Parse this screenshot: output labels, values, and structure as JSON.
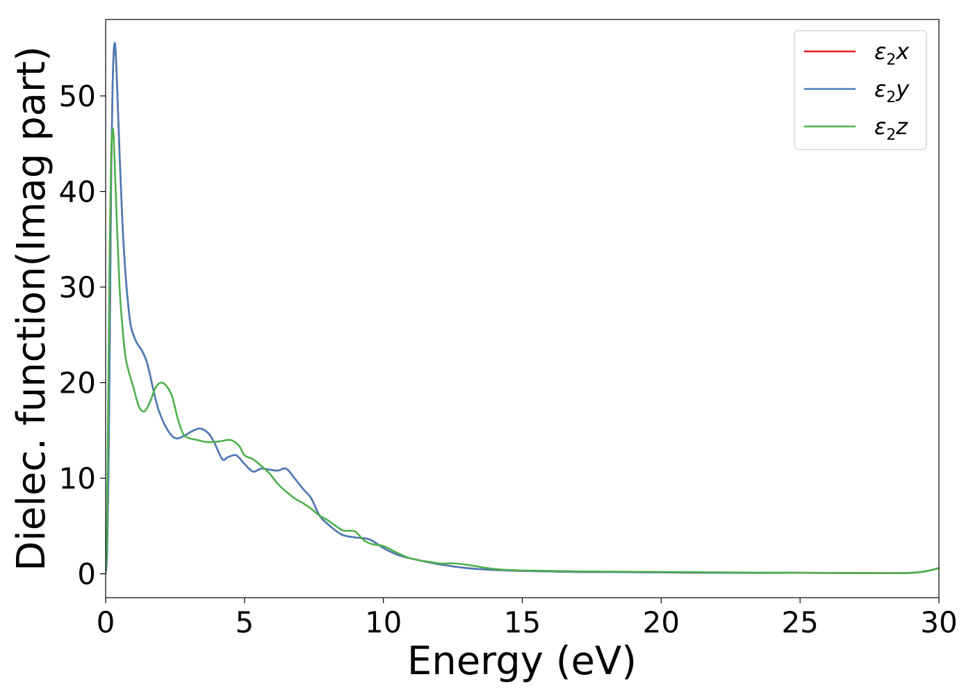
{
  "chart_data": {
    "type": "line",
    "xlabel": "Energy (eV)",
    "ylabel": "Dielec. function(Imag part)",
    "xlim": [
      0,
      30
    ],
    "ylim": [
      -2.5,
      58
    ],
    "xticks": [
      0,
      5,
      10,
      15,
      20,
      25,
      30
    ],
    "yticks": [
      0,
      10,
      20,
      30,
      40,
      50
    ],
    "legend_position": "top-right",
    "series": [
      {
        "name": "ε2x",
        "label_base": "ε",
        "label_sub": "2",
        "label_var": "x",
        "color": "#e41a1c",
        "x": [
          0,
          0.05,
          0.1,
          0.15,
          0.2,
          0.25,
          0.3,
          0.35,
          0.4,
          0.5,
          0.6,
          0.7,
          0.8,
          0.9,
          1.0,
          1.1,
          1.2,
          1.3,
          1.5,
          1.7,
          1.9,
          2.2,
          2.5,
          2.8,
          3.1,
          3.4,
          3.7,
          3.9,
          4.2,
          4.4,
          4.7,
          5.0,
          5.3,
          5.6,
          5.9,
          6.2,
          6.5,
          6.8,
          7.1,
          7.4,
          7.7,
          8.0,
          8.5,
          9.0,
          9.5,
          10.0,
          10.5,
          11.0,
          12.0,
          13.0,
          14.0,
          15.0,
          17.0,
          20.0,
          22.0,
          25.0,
          27.0,
          28.5,
          29.0,
          29.5,
          30.0
        ],
        "values": [
          0,
          2,
          10,
          25,
          42,
          51,
          55,
          54.8,
          52,
          44,
          37,
          32,
          28.5,
          26,
          25,
          24.3,
          23.8,
          23.4,
          22,
          19.5,
          17.2,
          15.2,
          14.2,
          14.4,
          14.9,
          15.2,
          14.7,
          13.8,
          12,
          12.2,
          12.4,
          11.5,
          10.7,
          11,
          10.9,
          10.8,
          11,
          10,
          8.9,
          7.9,
          6.1,
          5.2,
          4.1,
          3.8,
          3.6,
          2.7,
          2.0,
          1.6,
          1.0,
          0.6,
          0.4,
          0.3,
          0.2,
          0.15,
          0.1,
          0.1,
          0.08,
          0.07,
          0.1,
          0.25,
          0.6
        ]
      },
      {
        "name": "ε2y",
        "label_base": "ε",
        "label_sub": "2",
        "label_var": "y",
        "color": "#4a7db8",
        "x": [
          0,
          0.05,
          0.1,
          0.15,
          0.2,
          0.25,
          0.3,
          0.35,
          0.4,
          0.5,
          0.6,
          0.7,
          0.8,
          0.9,
          1.0,
          1.1,
          1.2,
          1.3,
          1.5,
          1.7,
          1.9,
          2.2,
          2.5,
          2.8,
          3.1,
          3.4,
          3.7,
          3.9,
          4.2,
          4.4,
          4.7,
          5.0,
          5.3,
          5.6,
          5.9,
          6.2,
          6.5,
          6.8,
          7.1,
          7.4,
          7.7,
          8.0,
          8.5,
          9.0,
          9.5,
          10.0,
          10.5,
          11.0,
          12.0,
          13.0,
          14.0,
          15.0,
          17.0,
          20.0,
          22.0,
          25.0,
          27.0,
          28.5,
          29.0,
          29.5,
          30.0
        ],
        "values": [
          0,
          2,
          10,
          25,
          42,
          51,
          55,
          55.2,
          52,
          44,
          37,
          32,
          28.5,
          26,
          25,
          24.3,
          23.8,
          23.4,
          22,
          19.5,
          17.2,
          15.2,
          14.2,
          14.4,
          14.9,
          15.2,
          14.7,
          13.8,
          12,
          12.2,
          12.4,
          11.5,
          10.7,
          11,
          10.9,
          10.8,
          11,
          10,
          8.9,
          7.9,
          6.1,
          5.2,
          4.1,
          3.8,
          3.6,
          2.7,
          2.0,
          1.6,
          1.0,
          0.6,
          0.4,
          0.3,
          0.2,
          0.15,
          0.1,
          0.1,
          0.08,
          0.07,
          0.1,
          0.25,
          0.6
        ]
      },
      {
        "name": "ε2z",
        "label_base": "ε",
        "label_sub": "2",
        "label_var": "z",
        "color": "#4daf4a",
        "x": [
          0,
          0.05,
          0.1,
          0.15,
          0.2,
          0.25,
          0.3,
          0.4,
          0.5,
          0.6,
          0.7,
          0.8,
          1.0,
          1.2,
          1.4,
          1.6,
          1.8,
          2.0,
          2.2,
          2.4,
          2.6,
          2.8,
          3.0,
          3.3,
          3.6,
          3.9,
          4.2,
          4.5,
          4.8,
          5.0,
          5.3,
          5.6,
          5.9,
          6.2,
          6.5,
          6.8,
          7.1,
          7.4,
          7.7,
          8.0,
          8.5,
          8.8,
          9.0,
          9.3,
          9.6,
          10.0,
          10.5,
          11.0,
          12.0,
          12.5,
          13.0,
          14.0,
          15.0,
          17.0,
          20.0,
          22.0,
          25.0,
          27.0,
          28.5,
          29.0,
          29.5,
          30.0
        ],
        "values": [
          0,
          5,
          20,
          35,
          44,
          46.5,
          45,
          37,
          30,
          26,
          23,
          21.5,
          19.5,
          17.5,
          17,
          18,
          19.5,
          20,
          19.6,
          18.5,
          16.2,
          14.6,
          14.2,
          14,
          13.8,
          13.8,
          13.9,
          14,
          13.4,
          12.4,
          12,
          11.3,
          10.5,
          9.4,
          8.6,
          7.9,
          7.4,
          6.8,
          6.1,
          5.6,
          4.6,
          4.5,
          4.4,
          3.5,
          3.1,
          2.9,
          2.2,
          1.6,
          1.1,
          1.1,
          0.95,
          0.5,
          0.35,
          0.25,
          0.2,
          0.15,
          0.1,
          0.08,
          0.07,
          0.1,
          0.25,
          0.6
        ]
      }
    ]
  }
}
